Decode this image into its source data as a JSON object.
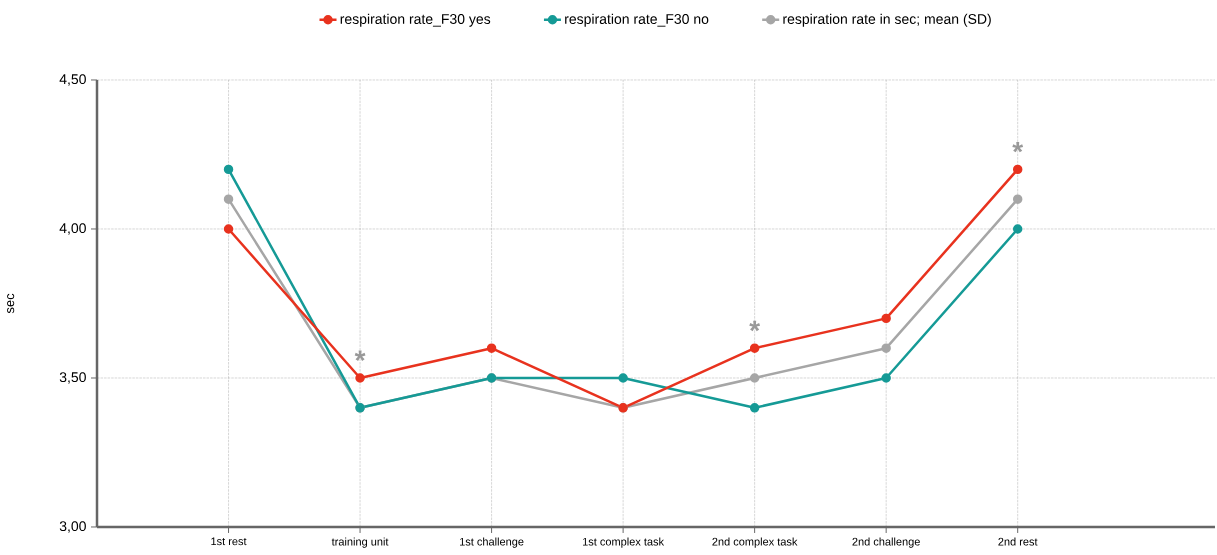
{
  "chart_data": {
    "type": "line",
    "ylabel": "sec",
    "categories": [
      "1st rest",
      "training unit",
      "1st challenge",
      "1st complex task",
      "2nd complex task",
      "2nd challenge",
      "2nd rest"
    ],
    "series": [
      {
        "name": "respiration rate_F30 yes",
        "color": "#e8321e",
        "values": [
          4.0,
          3.5,
          3.6,
          3.4,
          3.6,
          3.7,
          4.2
        ]
      },
      {
        "name": "respiration rate_F30 no",
        "color": "#159a96",
        "values": [
          4.2,
          3.4,
          3.5,
          3.5,
          3.4,
          3.5,
          4.0
        ]
      },
      {
        "name": "respiration rate in sec; mean (SD)",
        "color": "#a6a6a6",
        "values": [
          4.1,
          3.4,
          3.5,
          3.4,
          3.5,
          3.6,
          4.1
        ]
      }
    ],
    "ylim": [
      3.0,
      4.5
    ],
    "yticks": [
      {
        "value": 3.0,
        "label": "3,00"
      },
      {
        "value": 3.5,
        "label": "3,50"
      },
      {
        "value": 4.0,
        "label": "4,00"
      },
      {
        "value": 4.5,
        "label": "4,50"
      }
    ],
    "grid": true,
    "legend": "top",
    "marker": "circle",
    "line_style": "solid",
    "annotations": [
      {
        "text": "*",
        "x": "training unit",
        "y": 3.5
      },
      {
        "text": "*",
        "x": "2nd complex task",
        "y": 3.6
      },
      {
        "text": "*",
        "x": "2nd rest",
        "y": 4.2
      }
    ]
  }
}
